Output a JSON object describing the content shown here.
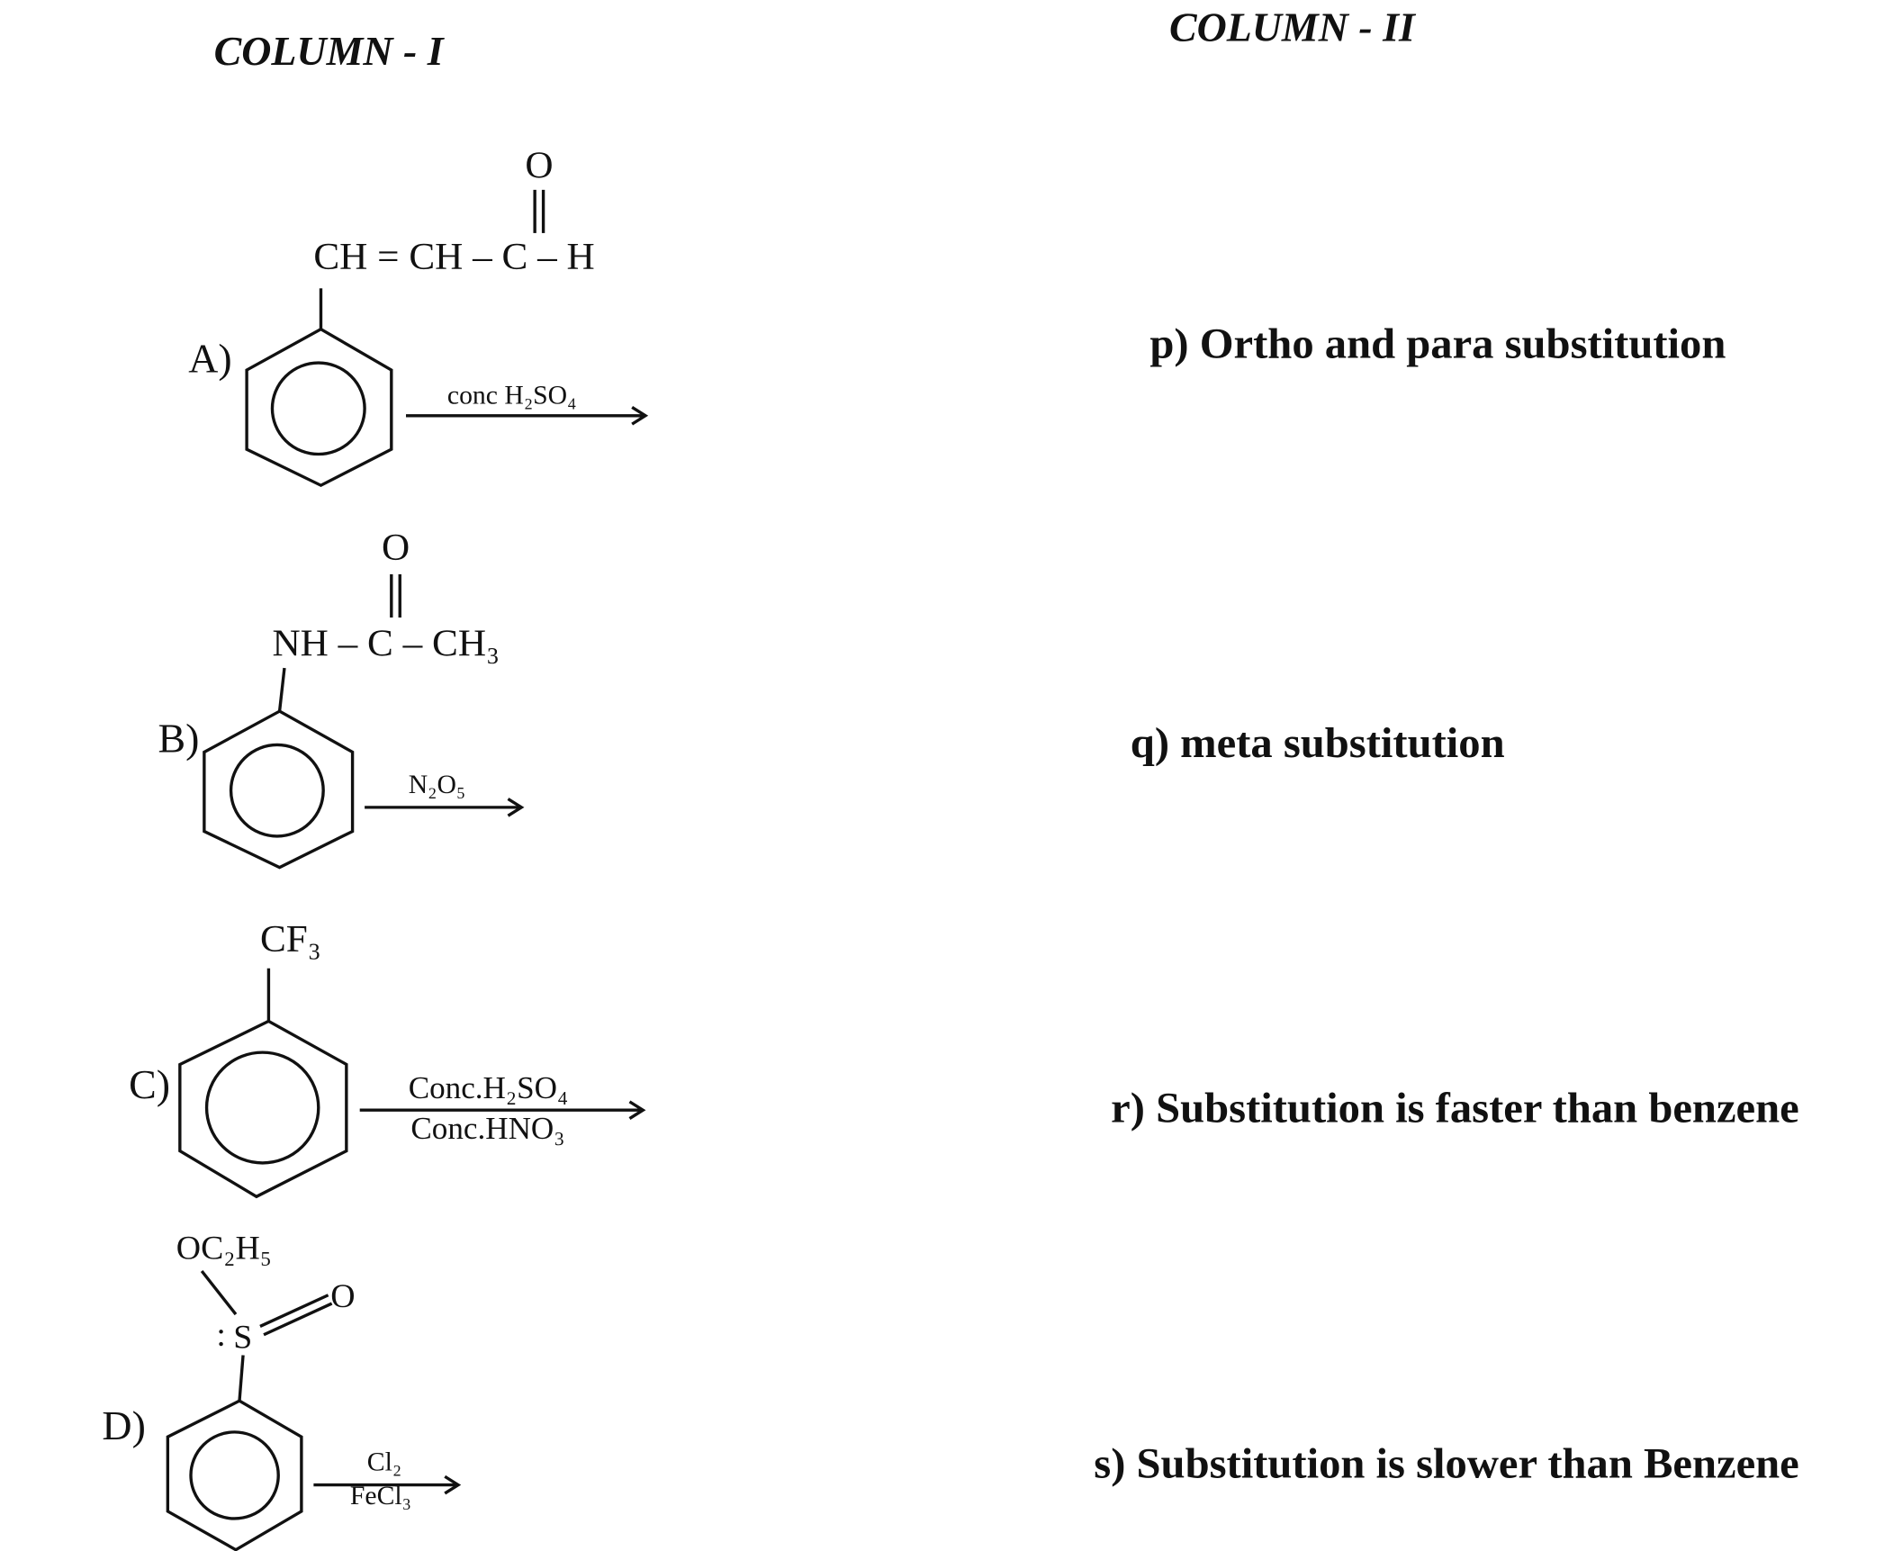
{
  "header": {
    "column_1": "COLUMN - I",
    "column_2": "COLUMN - II"
  },
  "column_1": [
    {
      "label": "A)",
      "substituent": "CH = CH – C – H",
      "carbonyl_o": "O",
      "reagent": "conc H₂SO₄"
    },
    {
      "label": "B)",
      "substituent": "NH – C – CH₃",
      "carbonyl_o": "O",
      "reagent": "N₂O₅"
    },
    {
      "label": "C)",
      "substituent": "CF₃",
      "reagent_top": "Conc.H₂SO₄",
      "reagent_bottom": "Conc.HNO₃"
    },
    {
      "label": "D)",
      "substituent": "OC₂H₅",
      "sulfur": "S",
      "sulfonyl_o": "O",
      "reagent_top": "Cl₂",
      "reagent_bottom": "FeCl₃"
    }
  ],
  "column_2": [
    "p) Ortho and para substitution",
    "q) meta substitution",
    "r)  Substitution is faster than benzene",
    "s) Substitution is slower than Benzene"
  ]
}
